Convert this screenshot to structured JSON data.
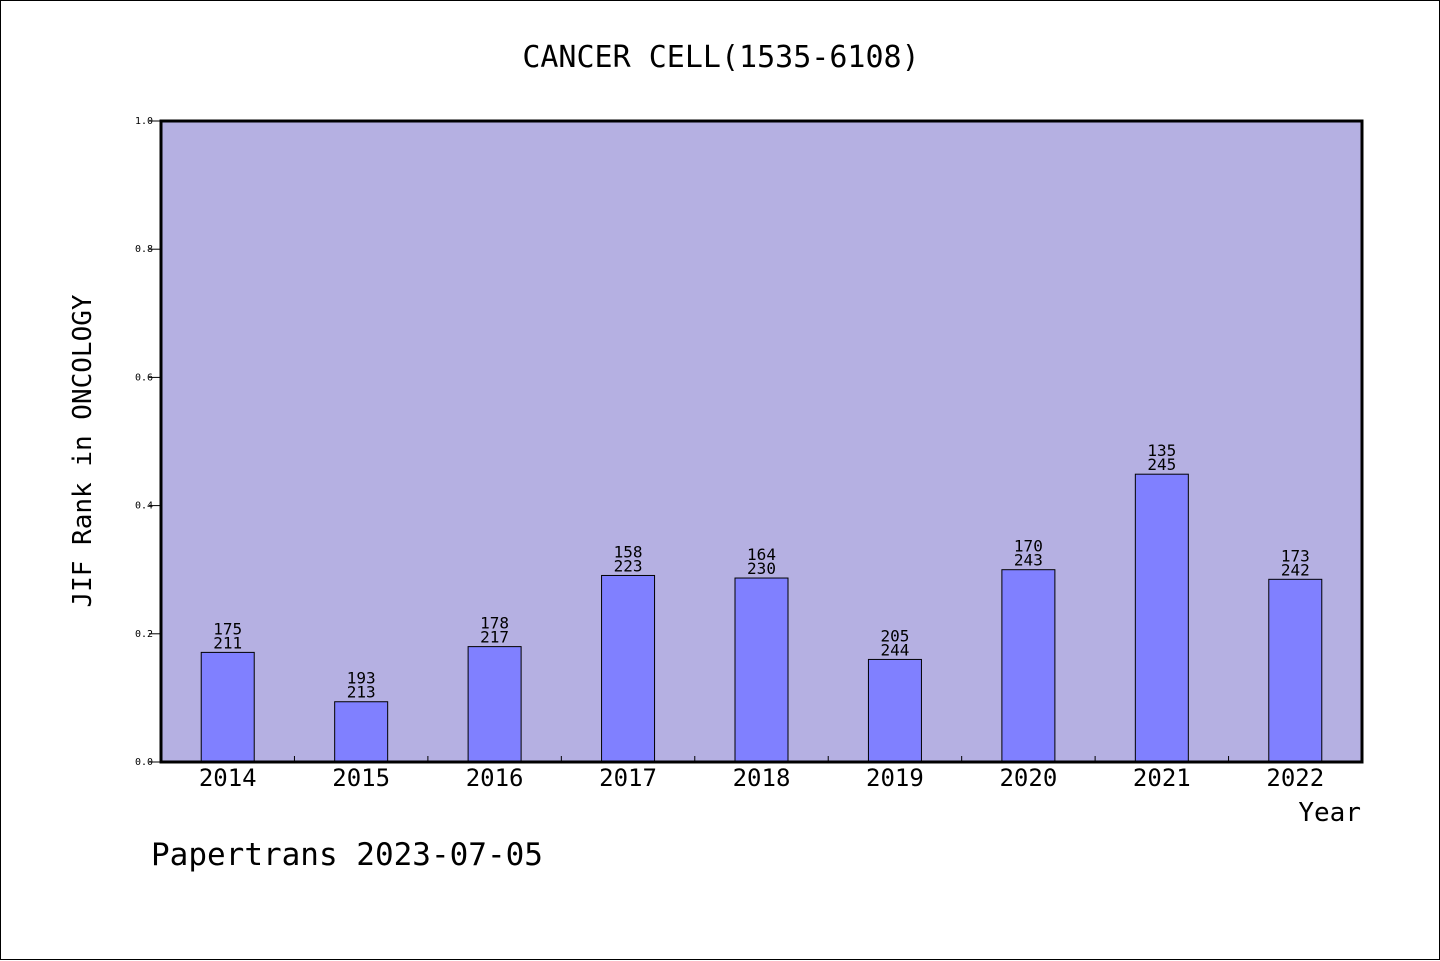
{
  "chart_data": {
    "type": "bar",
    "title": "CANCER CELL(1535-6108)",
    "xlabel": "Year",
    "ylabel": "JIF Rank in ONCOLOGY",
    "ylim": [
      0,
      1.0
    ],
    "yticks": [
      "0.0",
      "0.2",
      "0.4",
      "0.6",
      "0.8",
      "1.0"
    ],
    "categories": [
      "2014",
      "2015",
      "2016",
      "2017",
      "2018",
      "2019",
      "2020",
      "2021",
      "2022"
    ],
    "values": [
      0.171,
      0.094,
      0.18,
      0.291,
      0.287,
      0.16,
      0.3,
      0.449,
      0.285
    ],
    "bar_labels": [
      [
        "175",
        "211"
      ],
      [
        "193",
        "213"
      ],
      [
        "178",
        "217"
      ],
      [
        "158",
        "223"
      ],
      [
        "164",
        "230"
      ],
      [
        "205",
        "244"
      ],
      [
        "170",
        "243"
      ],
      [
        "135",
        "245"
      ],
      [
        "173",
        "242"
      ]
    ],
    "grid": false,
    "legend": "none"
  },
  "footer": "Papertrans 2023-07-05",
  "colors": {
    "plot_background": "#b5b0e2",
    "bar_fill": "#8080ff",
    "bar_stroke": "#000000",
    "axis": "#000000"
  }
}
